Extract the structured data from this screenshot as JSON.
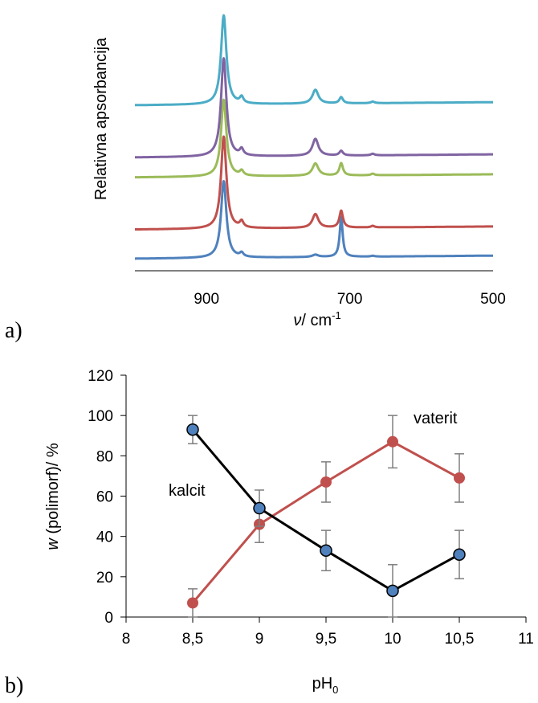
{
  "panels": {
    "a_label": "a)",
    "b_label": "b)"
  },
  "chart_data": [
    {
      "type": "line",
      "ylabel": "Relativna apsorbancija",
      "xlabel_symbol": "ν",
      "xlabel_unit": "/ cm",
      "xlabel_sup": "-1",
      "xlim": [
        1000,
        500
      ],
      "xticks": [
        900,
        700,
        500
      ],
      "colors": [
        "#4f81bd",
        "#c0504d",
        "#9bbb59",
        "#8064a2",
        "#4bacc6"
      ],
      "series": [
        {
          "color": "#4f81bd",
          "baseline": 0.0,
          "peaks": [
            [
              876,
              100,
              4.5
            ],
            [
              851,
              5,
              3
            ],
            [
              712,
              52,
              2.5
            ],
            [
              748,
              3,
              5
            ],
            [
              668,
              1,
              3
            ]
          ]
        },
        {
          "color": "#c0504d",
          "baseline": 38,
          "peaks": [
            [
              876,
              120,
              4.5
            ],
            [
              851,
              8,
              3
            ],
            [
              748,
              18,
              5
            ],
            [
              712,
              22,
              3
            ],
            [
              668,
              2,
              3
            ]
          ]
        },
        {
          "color": "#9bbb59",
          "baseline": 106,
          "peaks": [
            [
              876,
              100,
              4.5
            ],
            [
              851,
              6,
              3
            ],
            [
              748,
              16,
              5
            ],
            [
              712,
              16,
              3
            ],
            [
              668,
              2,
              3
            ]
          ]
        },
        {
          "color": "#8064a2",
          "baseline": 132,
          "peaks": [
            [
              876,
              128,
              4.5
            ],
            [
              851,
              8,
              3
            ],
            [
              748,
              22,
              5
            ],
            [
              712,
              6,
              3
            ],
            [
              668,
              2,
              3
            ]
          ]
        },
        {
          "color": "#4bacc6",
          "baseline": 200,
          "peaks": [
            [
              876,
              116,
              4.5
            ],
            [
              851,
              8,
              3
            ],
            [
              748,
              18,
              5
            ],
            [
              712,
              8,
              3
            ],
            [
              668,
              2,
              3
            ]
          ]
        }
      ]
    },
    {
      "type": "line",
      "xlabel": "pH",
      "xlabel_sub": "0",
      "ylabel_var": "w",
      "ylabel_rest": " (polimorf)/ %",
      "xlim": [
        8,
        11
      ],
      "ylim": [
        0,
        120
      ],
      "xtick_labels": [
        "8",
        "8,5",
        "9",
        "9,5",
        "10",
        "10,5",
        "11"
      ],
      "ytick_labels": [
        "0",
        "20",
        "40",
        "60",
        "80",
        "100",
        "120"
      ],
      "series": [
        {
          "name": "kalcit",
          "color": "#000000",
          "marker_color": "#4f81bd",
          "x": [
            8.5,
            9,
            9.5,
            10,
            10.5
          ],
          "y": [
            93,
            54,
            33,
            13,
            31
          ],
          "err": [
            7,
            9,
            10,
            13,
            12
          ]
        },
        {
          "name": "vaterit",
          "color": "#c0504d",
          "marker_color": "#c0504d",
          "x": [
            8.5,
            9,
            9.5,
            10,
            10.5
          ],
          "y": [
            7,
            46,
            67,
            87,
            69
          ],
          "err": [
            7,
            9,
            10,
            13,
            12
          ]
        }
      ]
    }
  ]
}
